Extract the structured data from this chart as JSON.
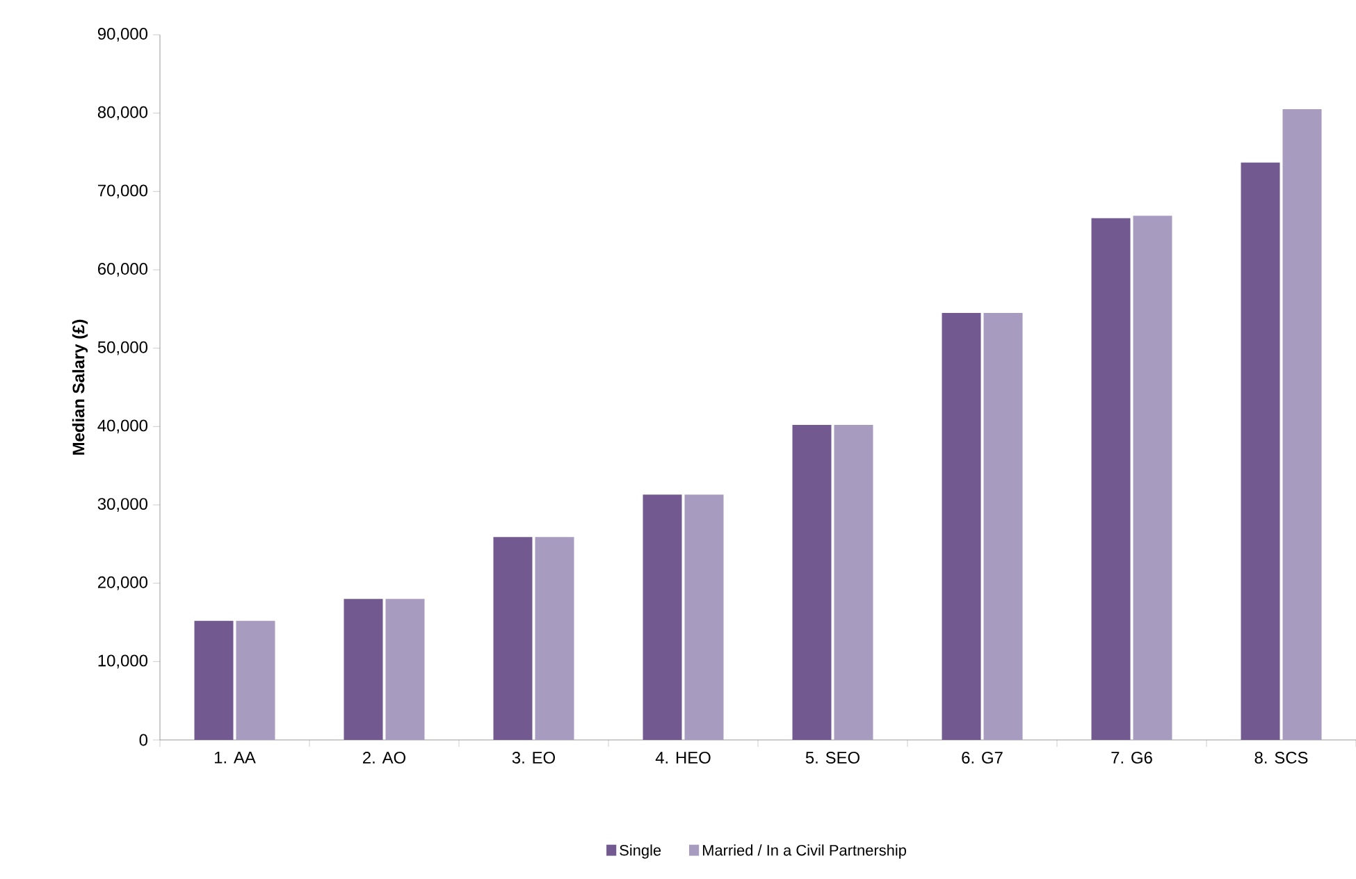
{
  "chart_data": {
    "type": "bar",
    "ylabel": "Median Salary (£)",
    "categories": [
      "1. AA",
      "2. AO",
      "3. EO",
      "4. HEO",
      "5. SEO",
      "6. G7",
      "7. G6",
      "8. SCS"
    ],
    "series": [
      {
        "name": "Single",
        "color": "#725a91",
        "values": [
          15200,
          18000,
          25900,
          31300,
          40200,
          54500,
          66600,
          73700
        ]
      },
      {
        "name": "Married / In a Civil Partnership",
        "color": "#a89bc0",
        "values": [
          15200,
          18000,
          25900,
          31300,
          40200,
          54500,
          66900,
          80500
        ]
      }
    ],
    "ylim": [
      0,
      90000
    ],
    "yticks": [
      {
        "value": 0,
        "label": "0"
      },
      {
        "value": 10000,
        "label": "10,000"
      },
      {
        "value": 20000,
        "label": "20,000"
      },
      {
        "value": 30000,
        "label": "30,000"
      },
      {
        "value": 40000,
        "label": "40,000"
      },
      {
        "value": 50000,
        "label": "50,000"
      },
      {
        "value": 60000,
        "label": "60,000"
      },
      {
        "value": 70000,
        "label": "70,000"
      },
      {
        "value": 80000,
        "label": "80,000"
      },
      {
        "value": 90000,
        "label": "90,000"
      }
    ],
    "legend": "bottom"
  }
}
